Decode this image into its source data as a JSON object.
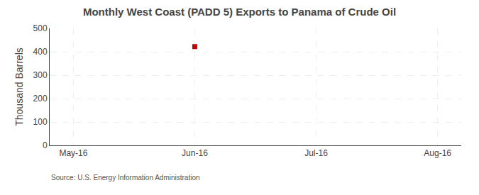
{
  "chart_data": {
    "type": "scatter",
    "title": "Monthly West Coast (PADD 5) Exports to Panama of Crude Oil",
    "y_label": "Thousand Barrels",
    "annotations": [
      "Source: U.S. Energy Information Administration"
    ],
    "categories": [
      "May-16",
      "Jun-16",
      "Jul-16",
      "Aug-16"
    ],
    "values": [
      null,
      422,
      null,
      null
    ],
    "color": "#cc0000",
    "marker": "square",
    "ylim": [
      0,
      500
    ],
    "yticks": [
      0,
      100,
      200,
      300,
      400,
      500
    ],
    "grid": true
  }
}
